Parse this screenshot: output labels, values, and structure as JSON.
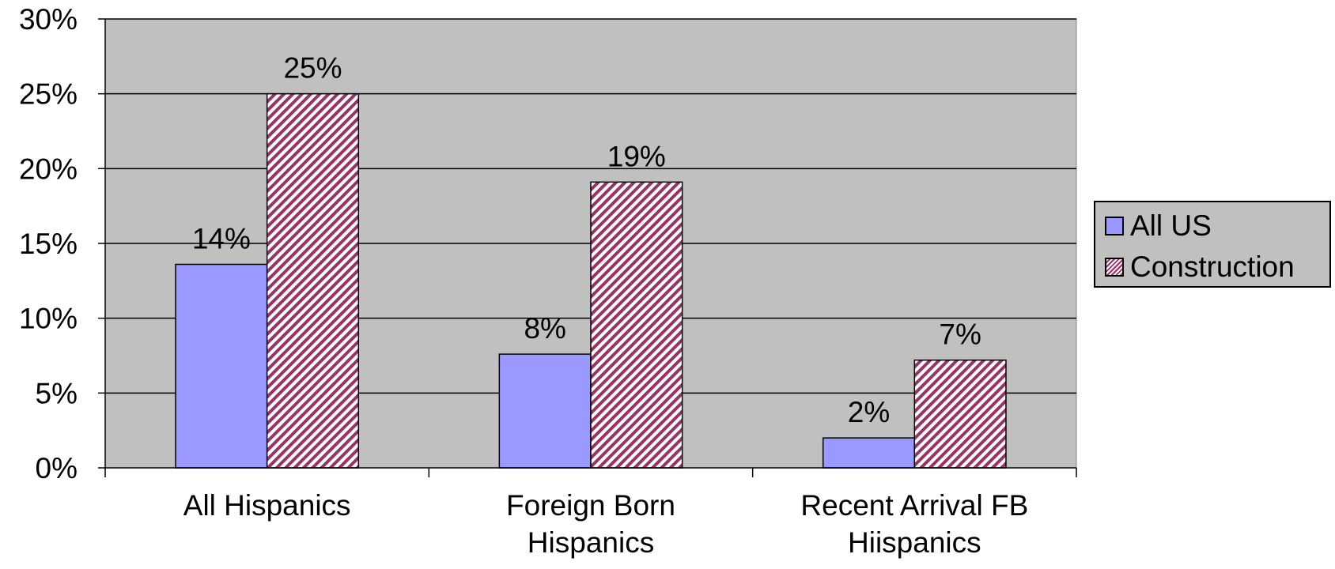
{
  "chart_data": {
    "type": "bar",
    "categories": [
      [
        "All Hispanics"
      ],
      [
        "Foreign Born",
        "Hispanics"
      ],
      [
        "Recent Arrival FB",
        "Hiispanics"
      ]
    ],
    "series": [
      {
        "name": "All US",
        "values": [
          13.6,
          7.6,
          2.0
        ],
        "labels": [
          "14%",
          "8%",
          "2%"
        ],
        "color": "#9999ff",
        "pattern": "solid"
      },
      {
        "name": "Construction",
        "values": [
          25.0,
          19.1,
          7.2
        ],
        "labels": [
          "25%",
          "19%",
          "7%"
        ],
        "color": "#993366",
        "pattern": "diagonal-hatch"
      }
    ],
    "yticks": [
      "0%",
      "5%",
      "10%",
      "15%",
      "20%",
      "25%",
      "30%"
    ],
    "ylim": [
      0,
      30
    ],
    "grid": true,
    "plot_background": "#c0c0c0",
    "legend": {
      "position": "right"
    },
    "title": "",
    "xlabel": "",
    "ylabel": ""
  }
}
